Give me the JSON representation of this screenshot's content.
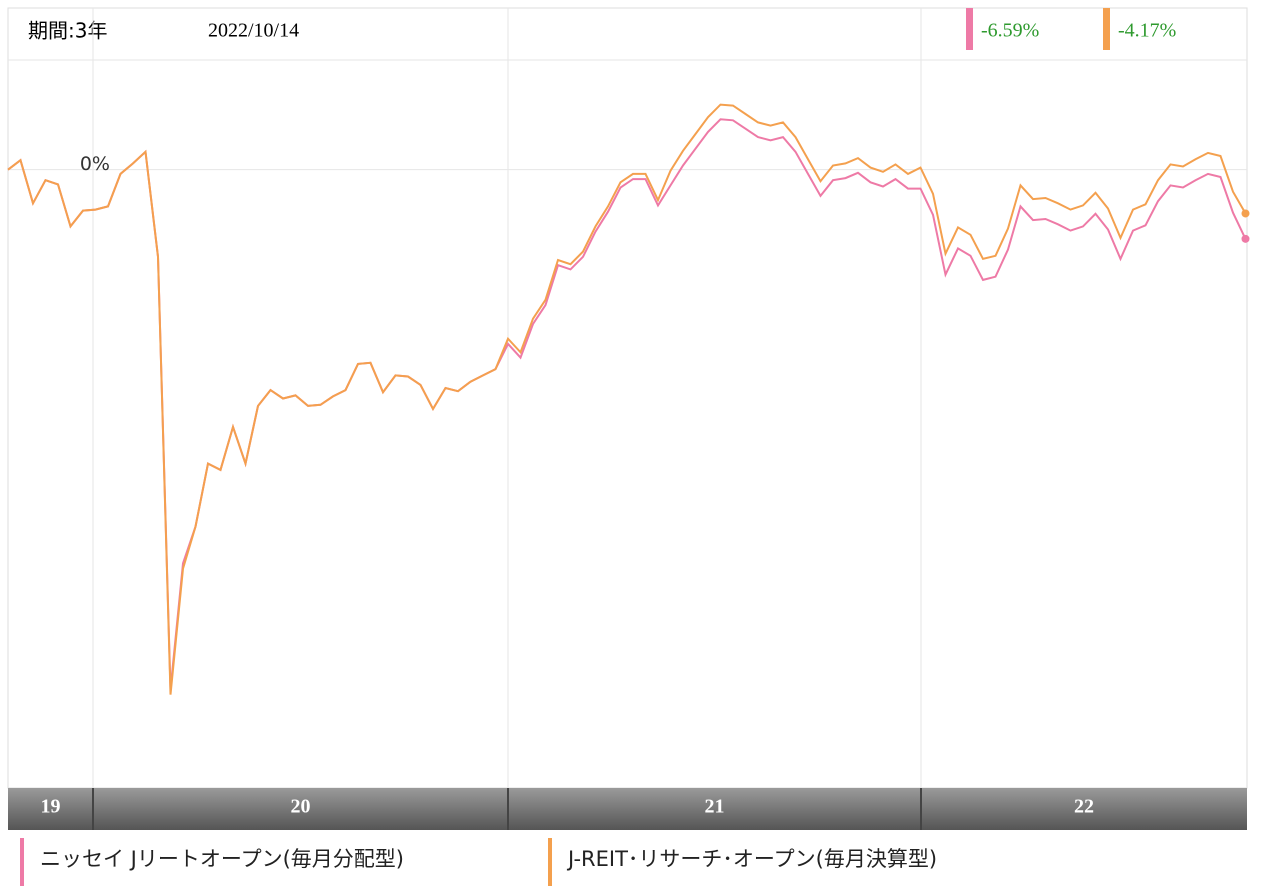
{
  "chart_data": {
    "type": "line",
    "header": {
      "period": "期間:3年",
      "date": "2022/10/14"
    },
    "year_labels": [
      "19",
      "20",
      "21",
      "22"
    ],
    "ylim": [
      -58.9,
      15.4
    ],
    "yticks": [
      {
        "value": 0,
        "label": "0%"
      }
    ],
    "grid": true,
    "series": [
      {
        "name": "ニッセイ Jリートオープン(毎月分配型)",
        "color": "#ee7aa6",
        "value_label": "-6.59%",
        "values": [
          0,
          0.9,
          -3.2,
          -1.0,
          -1.4,
          -5.4,
          -3.9,
          -3.8,
          -3.5,
          -0.4,
          0.6,
          1.7,
          -8.3,
          -49.5,
          -37.5,
          -34,
          -28,
          -28.6,
          -24.5,
          -28,
          -22.5,
          -21,
          -21.8,
          -21.5,
          -22.5,
          -22.4,
          -21.6,
          -21,
          -18.5,
          -18.4,
          -21.2,
          -19.6,
          -19.7,
          -20.5,
          -22.8,
          -20.8,
          -21.1,
          -20.2,
          -19.6,
          -19.0,
          -16.6,
          -17.9,
          -14.7,
          -12.9,
          -9.1,
          -9.5,
          -8.3,
          -5.9,
          -4.0,
          -1.7,
          -0.9,
          -0.9,
          -3.4,
          -1.5,
          0.4,
          2.0,
          3.6,
          4.8,
          4.7,
          3.9,
          3.1,
          2.8,
          3.1,
          1.7,
          -0.4,
          -2.5,
          -1.0,
          -0.8,
          -0.3,
          -1.2,
          -1.6,
          -0.9,
          -1.8,
          -1.8,
          -4.3,
          -10.0,
          -7.5,
          -8.2,
          -10.5,
          -10.2,
          -7.6,
          -3.5,
          -4.8,
          -4.7,
          -5.2,
          -5.8,
          -5.4,
          -4.2,
          -5.7,
          -8.5,
          -5.8,
          -5.3,
          -3.0,
          -1.5,
          -1.7,
          -1.0,
          -0.4,
          -0.7,
          -4.1,
          -6.59
        ]
      },
      {
        "name": "J-REIT･リサーチ･オープン(毎月決算型)",
        "color": "#f4a04e",
        "value_label": "-4.17%",
        "values": [
          0,
          0.9,
          -3.2,
          -1.0,
          -1.4,
          -5.4,
          -3.9,
          -3.8,
          -3.5,
          -0.4,
          0.6,
          1.7,
          -8.3,
          -50.0,
          -38,
          -34,
          -28,
          -28.6,
          -24.5,
          -28,
          -22.5,
          -21,
          -21.8,
          -21.5,
          -22.5,
          -22.4,
          -21.6,
          -21,
          -18.5,
          -18.4,
          -21.2,
          -19.6,
          -19.7,
          -20.5,
          -22.8,
          -20.8,
          -21.1,
          -20.2,
          -19.6,
          -19.0,
          -16.1,
          -17.4,
          -14.2,
          -12.4,
          -8.6,
          -9.0,
          -7.8,
          -5.4,
          -3.5,
          -1.2,
          -0.4,
          -0.4,
          -2.9,
          -0.1,
          1.8,
          3.4,
          5.0,
          6.2,
          6.1,
          5.3,
          4.5,
          4.2,
          4.5,
          3.1,
          1.0,
          -1.1,
          0.4,
          0.6,
          1.1,
          0.2,
          -0.2,
          0.5,
          -0.4,
          0.2,
          -2.3,
          -8.0,
          -5.5,
          -6.2,
          -8.5,
          -8.2,
          -5.6,
          -1.5,
          -2.8,
          -2.7,
          -3.2,
          -3.8,
          -3.4,
          -2.2,
          -3.7,
          -6.5,
          -3.8,
          -3.3,
          -1.0,
          0.5,
          0.3,
          1.0,
          1.6,
          1.3,
          -2.1,
          -4.17
        ]
      }
    ]
  }
}
